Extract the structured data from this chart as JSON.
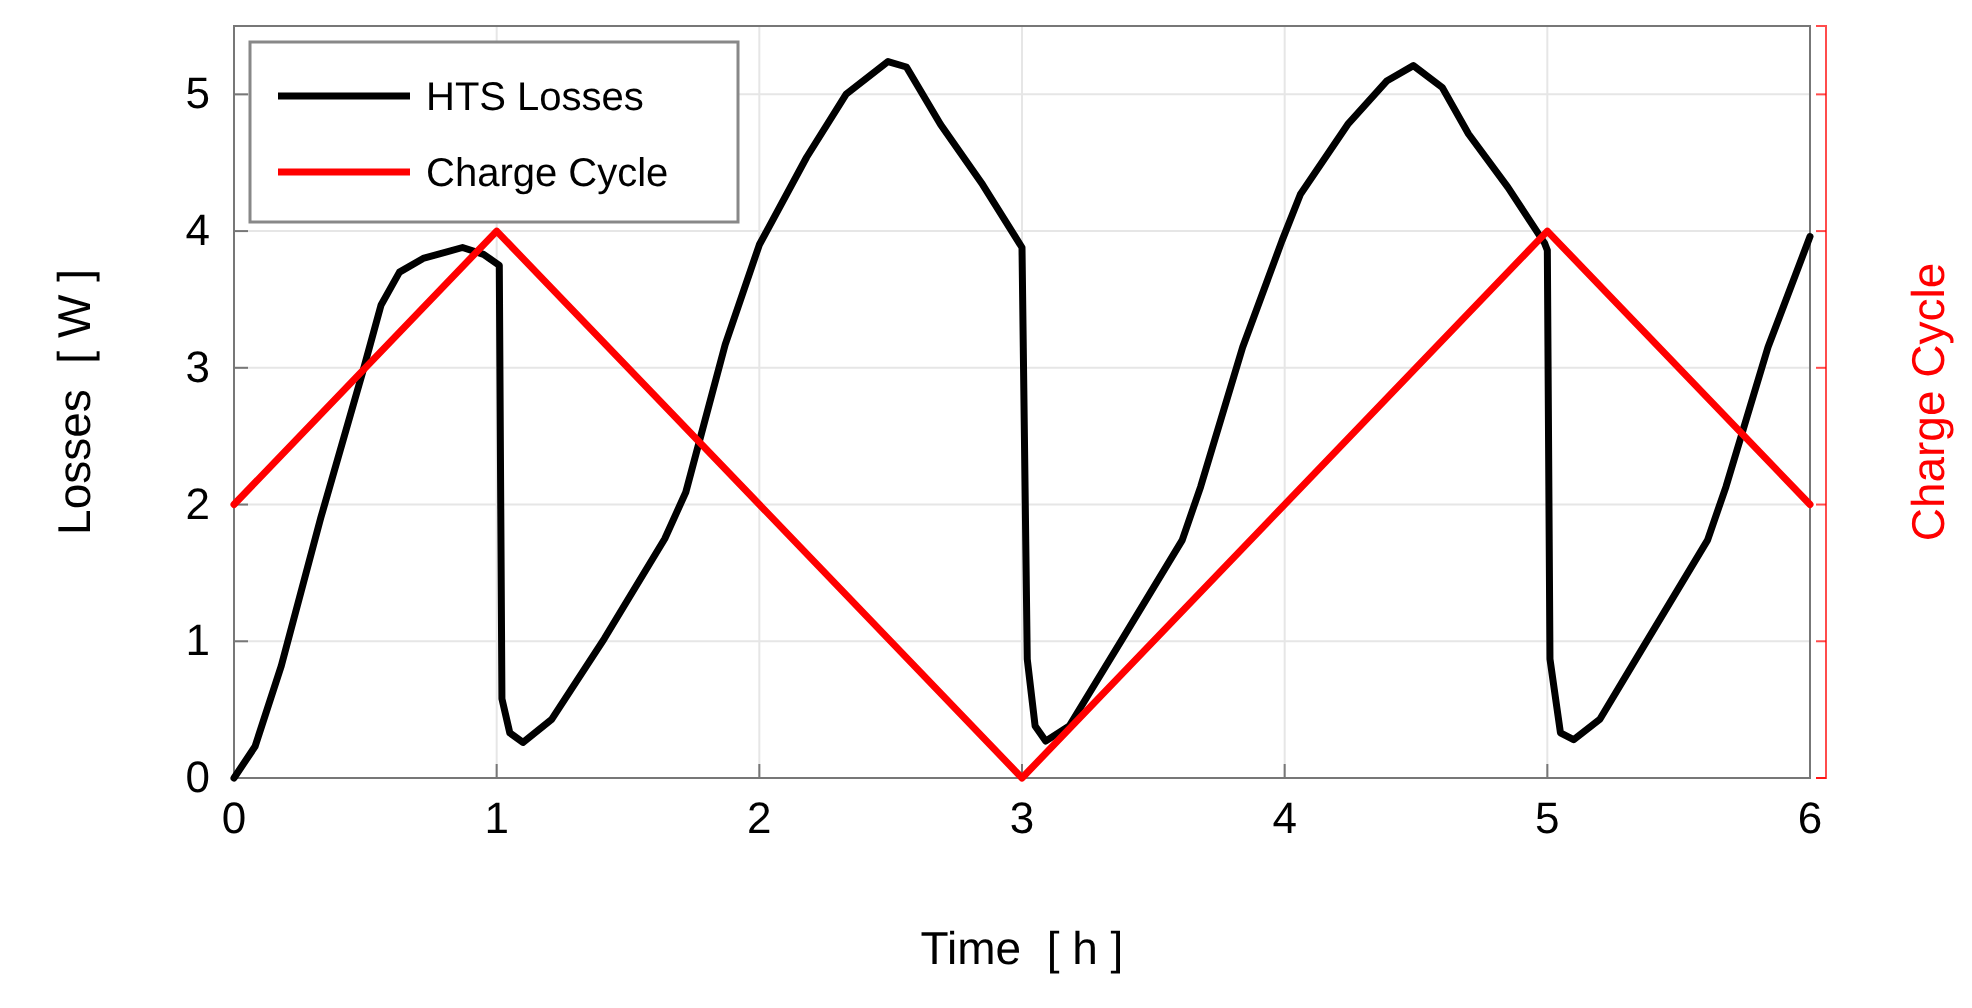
{
  "chart_data": {
    "type": "line",
    "xlabel": "Time  [ h ]",
    "ylabel": "Losses  [ W ]",
    "y2label": "Charge Cycle",
    "xlim": [
      0,
      6
    ],
    "xticks": [
      0,
      1,
      2,
      3,
      4,
      5,
      6
    ],
    "ylim": [
      0,
      5.5
    ],
    "yticks": [
      0,
      1,
      2,
      3,
      4,
      5
    ],
    "grid": true,
    "legend": "top left",
    "line_style": "solid",
    "series": [
      {
        "name": "HTS Losses",
        "color": "#000000",
        "x": [
          0,
          0.08,
          0.18,
          0.33,
          0.49,
          0.56,
          0.63,
          0.72,
          0.87,
          0.95,
          1.01,
          1.02,
          1.05,
          1.1,
          1.21,
          1.41,
          1.64,
          1.72,
          1.87,
          2.0,
          2.18,
          2.33,
          2.49,
          2.56,
          2.69,
          2.85,
          3.0,
          3.02,
          3.05,
          3.09,
          3.18,
          3.38,
          3.61,
          3.68,
          3.84,
          3.99,
          4.06,
          4.24,
          4.39,
          4.49,
          4.6,
          4.7,
          4.85,
          4.99,
          5.0,
          5.01,
          5.05,
          5.1,
          5.2,
          5.35,
          5.61,
          5.68,
          5.84,
          6.0
        ],
        "values": [
          0,
          0.23,
          0.82,
          1.9,
          2.97,
          3.46,
          3.7,
          3.8,
          3.88,
          3.83,
          3.75,
          0.58,
          0.33,
          0.26,
          0.43,
          1.02,
          1.75,
          2.09,
          3.17,
          3.9,
          4.54,
          5.0,
          5.24,
          5.2,
          4.78,
          4.34,
          3.88,
          0.87,
          0.38,
          0.27,
          0.38,
          1.01,
          1.74,
          2.13,
          3.15,
          3.93,
          4.27,
          4.78,
          5.1,
          5.21,
          5.05,
          4.71,
          4.32,
          3.91,
          3.86,
          0.87,
          0.33,
          0.28,
          0.43,
          0.91,
          1.74,
          2.13,
          3.15,
          3.96
        ]
      },
      {
        "name": "Charge Cycle",
        "color": "#ff0000",
        "x": [
          0,
          1,
          3,
          5,
          6
        ],
        "values": [
          2,
          4,
          0,
          4,
          2
        ]
      }
    ]
  }
}
